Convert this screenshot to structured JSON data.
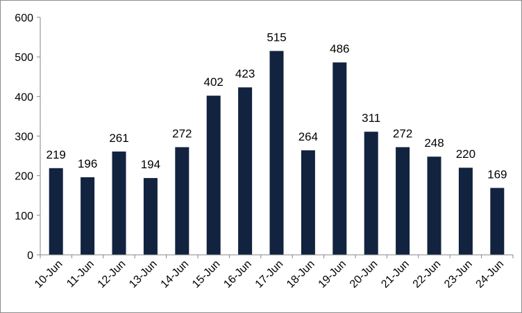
{
  "chart_data": {
    "type": "bar",
    "title": "",
    "xlabel": "",
    "ylabel": "",
    "categories": [
      "10-Jun",
      "11-Jun",
      "12-Jun",
      "13-Jun",
      "14-Jun",
      "15-Jun",
      "16-Jun",
      "17-Jun",
      "18-Jun",
      "19-Jun",
      "20-Jun",
      "21-Jun",
      "22-Jun",
      "23-Jun",
      "24-Jun"
    ],
    "values": [
      219,
      196,
      261,
      194,
      272,
      402,
      423,
      515,
      264,
      486,
      311,
      272,
      248,
      220,
      169
    ],
    "ylim": [
      0,
      600
    ],
    "yticks": [
      "0",
      "100",
      "200",
      "300",
      "400",
      "500",
      "600"
    ],
    "grid": false,
    "legend": "none",
    "bar_color": "#12233F",
    "axis_color": "#868686"
  }
}
